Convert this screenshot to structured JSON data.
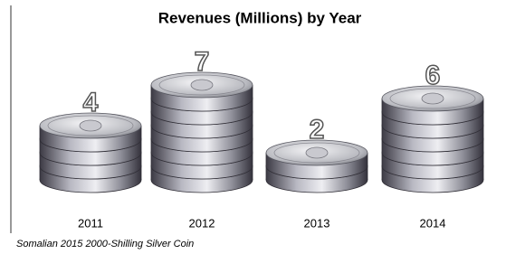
{
  "chart_data": {
    "type": "pictograph",
    "title": "Revenues (Millions) by Year",
    "categories": [
      "2011",
      "2012",
      "2013",
      "2014"
    ],
    "values": [
      4,
      7,
      2,
      6
    ],
    "note": "Somalian 2015 2000-Shilling Silver Coin"
  }
}
